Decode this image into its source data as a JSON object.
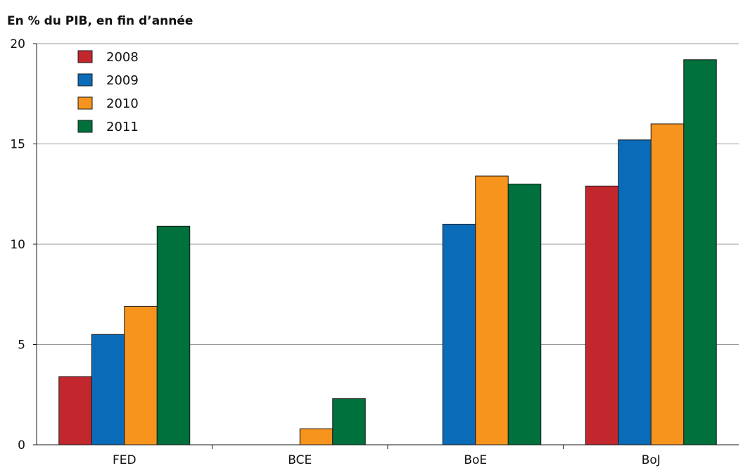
{
  "chart_data": {
    "type": "bar",
    "title": "En % du PIB, en fin d’année",
    "xlabel": "",
    "ylabel": "",
    "ylim": [
      0,
      20
    ],
    "yticks": [
      0,
      5,
      10,
      15,
      20
    ],
    "grid": true,
    "legend_position": "top-left",
    "categories": [
      "FED",
      "BCE",
      "BoE",
      "BoJ"
    ],
    "series": [
      {
        "name": "2008",
        "color": "#c1272d",
        "values": [
          3.4,
          0,
          0,
          12.9
        ]
      },
      {
        "name": "2009",
        "color": "#0a6bb8",
        "values": [
          5.5,
          0,
          11.0,
          15.2
        ]
      },
      {
        "name": "2010",
        "color": "#f7941d",
        "values": [
          6.9,
          0.8,
          13.4,
          16.0
        ]
      },
      {
        "name": "2011",
        "color": "#00703c",
        "values": [
          10.9,
          2.3,
          13.0,
          19.2
        ]
      }
    ]
  }
}
